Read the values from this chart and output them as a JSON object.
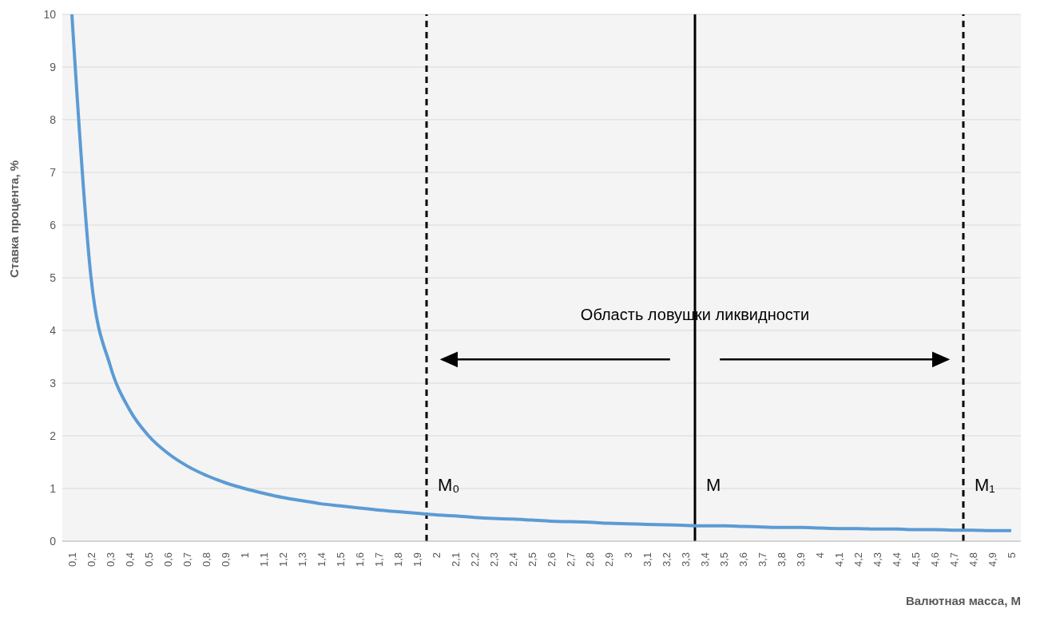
{
  "chart_data": {
    "type": "line",
    "xlabel": "Валютная масса, М",
    "ylabel": "Ставка процента, %",
    "x": [
      0.1,
      0.2,
      0.3,
      0.4,
      0.5,
      0.6,
      0.7,
      0.8,
      0.9,
      1,
      1.1,
      1.2,
      1.3,
      1.4,
      1.5,
      1.6,
      1.7,
      1.8,
      1.9,
      2,
      2.1,
      2.2,
      2.3,
      2.4,
      2.5,
      2.6,
      2.7,
      2.8,
      2.9,
      3,
      3.1,
      3.2,
      3.3,
      3.4,
      3.5,
      3.6,
      3.7,
      3.8,
      3.9,
      4,
      4.1,
      4.2,
      4.3,
      4.4,
      4.5,
      4.6,
      4.7,
      4.8,
      4.9,
      5
    ],
    "series": [
      {
        "color": "#5b9bd5",
        "values": [
          10,
          5,
          3.33,
          2.5,
          2,
          1.67,
          1.43,
          1.25,
          1.11,
          1,
          0.91,
          0.83,
          0.77,
          0.71,
          0.67,
          0.63,
          0.59,
          0.56,
          0.53,
          0.5,
          0.48,
          0.45,
          0.43,
          0.42,
          0.4,
          0.38,
          0.37,
          0.36,
          0.34,
          0.33,
          0.32,
          0.31,
          0.3,
          0.29,
          0.29,
          0.28,
          0.27,
          0.26,
          0.26,
          0.25,
          0.24,
          0.24,
          0.23,
          0.23,
          0.22,
          0.22,
          0.21,
          0.21,
          0.2,
          0.2
        ]
      }
    ],
    "xlim": [
      0.05,
      5.05
    ],
    "xticks": [
      {
        "value": 0.1,
        "label": "0,1"
      },
      {
        "value": 0.2,
        "label": "0,2"
      },
      {
        "value": 0.3,
        "label": "0,3"
      },
      {
        "value": 0.4,
        "label": "0,4"
      },
      {
        "value": 0.5,
        "label": "0,5"
      },
      {
        "value": 0.6,
        "label": "0,6"
      },
      {
        "value": 0.7,
        "label": "0,7"
      },
      {
        "value": 0.8,
        "label": "0,8"
      },
      {
        "value": 0.9,
        "label": "0,9"
      },
      1,
      {
        "value": 1.1,
        "label": "1,1"
      },
      {
        "value": 1.2,
        "label": "1,2"
      },
      {
        "value": 1.3,
        "label": "1,3"
      },
      {
        "value": 1.4,
        "label": "1,4"
      },
      {
        "value": 1.5,
        "label": "1,5"
      },
      {
        "value": 1.6,
        "label": "1,6"
      },
      {
        "value": 1.7,
        "label": "1,7"
      },
      {
        "value": 1.8,
        "label": "1,8"
      },
      {
        "value": 1.9,
        "label": "1,9"
      },
      2,
      {
        "value": 2.1,
        "label": "2,1"
      },
      {
        "value": 2.2,
        "label": "2,2"
      },
      {
        "value": 2.3,
        "label": "2,3"
      },
      {
        "value": 2.4,
        "label": "2,4"
      },
      {
        "value": 2.5,
        "label": "2,5"
      },
      {
        "value": 2.6,
        "label": "2,6"
      },
      {
        "value": 2.7,
        "label": "2,7"
      },
      {
        "value": 2.8,
        "label": "2,8"
      },
      {
        "value": 2.9,
        "label": "2,9"
      },
      3,
      {
        "value": 3.1,
        "label": "3,1"
      },
      {
        "value": 3.2,
        "label": "3,2"
      },
      {
        "value": 3.3,
        "label": "3,3"
      },
      {
        "value": 3.4,
        "label": "3,4"
      },
      {
        "value": 3.5,
        "label": "3,5"
      },
      {
        "value": 3.6,
        "label": "3,6"
      },
      {
        "value": 3.7,
        "label": "3,7"
      },
      {
        "value": 3.8,
        "label": "3,8"
      },
      {
        "value": 3.9,
        "label": "3,9"
      },
      4,
      {
        "value": 4.1,
        "label": "4,1"
      },
      {
        "value": 4.2,
        "label": "4,2"
      },
      {
        "value": 4.3,
        "label": "4,3"
      },
      {
        "value": 4.4,
        "label": "4,4"
      },
      {
        "value": 4.5,
        "label": "4,5"
      },
      {
        "value": 4.6,
        "label": "4,6"
      },
      {
        "value": 4.7,
        "label": "4,7"
      },
      {
        "value": 4.8,
        "label": "4,8"
      },
      {
        "value": 4.9,
        "label": "4,9"
      },
      5
    ],
    "ylim": [
      0,
      10
    ],
    "yticks": [
      0,
      1,
      2,
      3,
      4,
      5,
      6,
      7,
      8,
      9,
      10
    ],
    "grid": "y",
    "marker": "none",
    "legend": false,
    "ref_lines": [
      {
        "axis": "x",
        "value": 1.95,
        "label": "M₀",
        "color": "#000000",
        "line_style": "dashed"
      },
      {
        "axis": "x",
        "value": 3.35,
        "label": "M",
        "color": "#000000",
        "line_style": "solid"
      },
      {
        "axis": "x",
        "value": 4.75,
        "label": "M₁",
        "color": "#000000",
        "line_style": "dashed"
      }
    ],
    "annotations": [
      {
        "text": "Область ловушки ликвидности",
        "x": 3.35,
        "y": 4.2
      }
    ]
  }
}
